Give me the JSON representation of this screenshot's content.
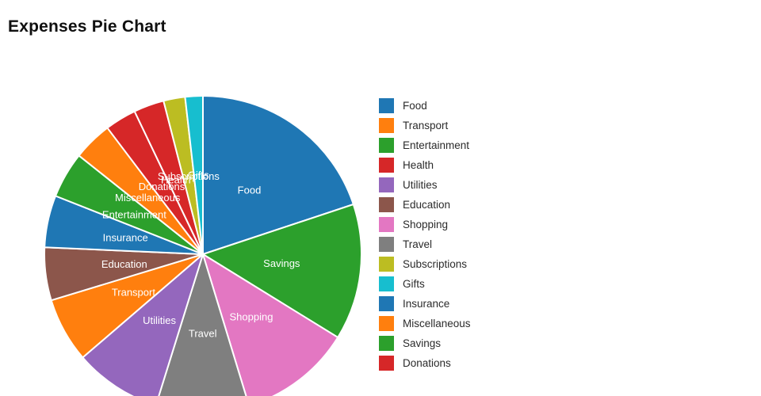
{
  "title": "Expenses Pie Chart",
  "chart_data": {
    "type": "pie",
    "title": "Expenses Pie Chart",
    "legend_position": "right",
    "sort": "slices drawn clockwise from 12 o'clock in descending value order",
    "start_angle_deg": 0,
    "categories": [
      "Food",
      "Transport",
      "Entertainment",
      "Health",
      "Utilities",
      "Education",
      "Shopping",
      "Travel",
      "Subscriptions",
      "Gifts",
      "Insurance",
      "Miscellaneous",
      "Savings",
      "Donations"
    ],
    "values_percent": [
      19.9,
      6.6,
      4.7,
      3.1,
      8.9,
      5.4,
      11.5,
      9.5,
      2.2,
      1.8,
      5.3,
      4.0,
      13.9,
      3.2
    ],
    "palette": [
      "#1f77b4",
      "#ff7f0e",
      "#2ca02c",
      "#d62728",
      "#9467bd",
      "#8c564b",
      "#e377c2",
      "#7f7f7f",
      "#bcbd22",
      "#17becf"
    ],
    "slice_label_color": "#ffffff",
    "slice_border_color": "#ffffff",
    "title_color": "#101010",
    "legend_text_color": "#2b2b2b"
  }
}
